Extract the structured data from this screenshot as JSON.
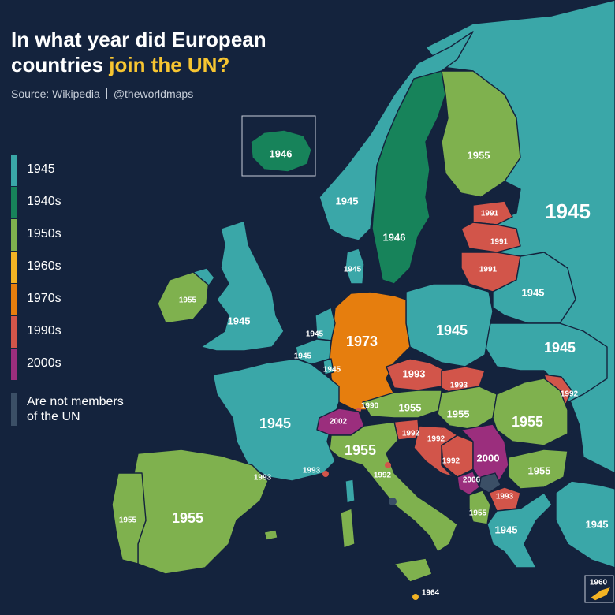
{
  "title": {
    "line1": "In what year did European",
    "line2_plain": "countries ",
    "line2_highlight": "join the UN?"
  },
  "source": {
    "text": "Source: Wikipedia",
    "handle": "@theworldmaps"
  },
  "colors": {
    "1945": "#3aa7a8",
    "1940s": "#17835a",
    "1950s": "#7fb14e",
    "1960s": "#f2b324",
    "1970s": "#e67e0e",
    "1990s": "#d2554a",
    "2000s": "#9b2e7d",
    "non_member": "#3b4f66",
    "ocean": "#14233d"
  },
  "legend": [
    {
      "label": "1945",
      "color": "#3aa7a8"
    },
    {
      "label": "1940s",
      "color": "#17835a"
    },
    {
      "label": "1950s",
      "color": "#7fb14e"
    },
    {
      "label": "1960s",
      "color": "#f2b324"
    },
    {
      "label": "1970s",
      "color": "#e67e0e"
    },
    {
      "label": "1990s",
      "color": "#d2554a"
    },
    {
      "label": "2000s",
      "color": "#9b2e7d"
    }
  ],
  "legend_nonmember": {
    "line1": "Are not members",
    "line2": "of the UN",
    "color": "#3b4f66"
  },
  "map_labels": {
    "iceland": "1946",
    "norway": "1945",
    "sweden": "1946",
    "finland": "1955",
    "russia": "1945",
    "estonia": "1991",
    "latvia": "1991",
    "lithuania": "1991",
    "belarus": "1945",
    "ukraine": "1945",
    "poland": "1945",
    "denmark": "1945",
    "ireland": "1955",
    "uk": "1945",
    "netherlands": "1945",
    "belgium": "1945",
    "luxembourg": "1945",
    "germany": "1973",
    "czechia": "1993",
    "slovakia": "1993",
    "moldova": "1992",
    "liechtenstein": "1990",
    "austria": "1955",
    "hungary": "1955",
    "romania": "1955",
    "france": "1945",
    "switzerland": "2002",
    "slovenia": "1992",
    "croatia": "1992",
    "bosnia": "1992",
    "serbia": "2000",
    "bulgaria": "1955",
    "italy": "1955",
    "monaco": "1993",
    "andorra": "1993",
    "san_marino": "1992",
    "montenegro": "2006",
    "macedonia": "1993",
    "albania": "1955",
    "greece": "1945",
    "turkey": "1945",
    "spain": "1955",
    "portugal": "1955",
    "malta": "1964",
    "cyprus": "1960"
  }
}
